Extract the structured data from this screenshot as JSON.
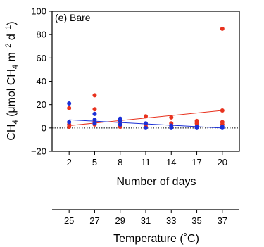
{
  "chart_data": {
    "type": "scatter",
    "panel_label": "(e) Bare",
    "ylabel": "CH4 (μmol CH4 m−2 d−1)",
    "ylabel_parts": {
      "main": "CH",
      "sub1": "4",
      "unit_open": " (μmol CH",
      "sub2": "4",
      "unit_m": " m",
      "sup1": "−2",
      "unit_d": " d",
      "sup2": "−1",
      "unit_close": ")"
    },
    "xlabel": "Number of days",
    "x2label": "Temperature (˚C)",
    "x_ticks": [
      2,
      5,
      8,
      11,
      14,
      17,
      20
    ],
    "x_tick_labels": [
      "2",
      "5",
      "8",
      "11",
      "14",
      "17",
      "20"
    ],
    "x2_tick_labels": [
      "25",
      "27",
      "29",
      "31",
      "33",
      "35",
      "37"
    ],
    "xlim": [
      0,
      22
    ],
    "ylim": [
      -20,
      100
    ],
    "y_ticks": [
      -20,
      0,
      20,
      40,
      60,
      80,
      100
    ],
    "y_tick_labels": [
      "−20",
      "0",
      "20",
      "40",
      "60",
      "80",
      "100"
    ],
    "reference_line_y": 0,
    "series": [
      {
        "color": "#e8321e",
        "points": [
          [
            2,
            17
          ],
          [
            2,
            3
          ],
          [
            2,
            1
          ],
          [
            5,
            28
          ],
          [
            5,
            16
          ],
          [
            5,
            5
          ],
          [
            5,
            3
          ],
          [
            8,
            5
          ],
          [
            8,
            3
          ],
          [
            8,
            1
          ],
          [
            11,
            10
          ],
          [
            11,
            3
          ],
          [
            11,
            1
          ],
          [
            14,
            9
          ],
          [
            14,
            4
          ],
          [
            14,
            1
          ],
          [
            17,
            6
          ],
          [
            17,
            4
          ],
          [
            17,
            1
          ],
          [
            20,
            85
          ],
          [
            20,
            15
          ],
          [
            20,
            5
          ],
          [
            20,
            3
          ]
        ],
        "trend": [
          [
            2,
            2
          ],
          [
            20,
            15
          ]
        ]
      },
      {
        "color": "#1a2fd6",
        "points": [
          [
            2,
            21
          ],
          [
            2,
            5
          ],
          [
            5,
            12
          ],
          [
            5,
            7
          ],
          [
            5,
            4
          ],
          [
            8,
            8
          ],
          [
            8,
            6
          ],
          [
            8,
            3
          ],
          [
            11,
            4
          ],
          [
            11,
            0
          ],
          [
            14,
            2
          ],
          [
            14,
            0
          ],
          [
            17,
            1
          ],
          [
            17,
            0
          ],
          [
            20,
            1
          ],
          [
            20,
            0
          ]
        ],
        "trend": [
          [
            2,
            7
          ],
          [
            20,
            0
          ]
        ]
      }
    ]
  }
}
